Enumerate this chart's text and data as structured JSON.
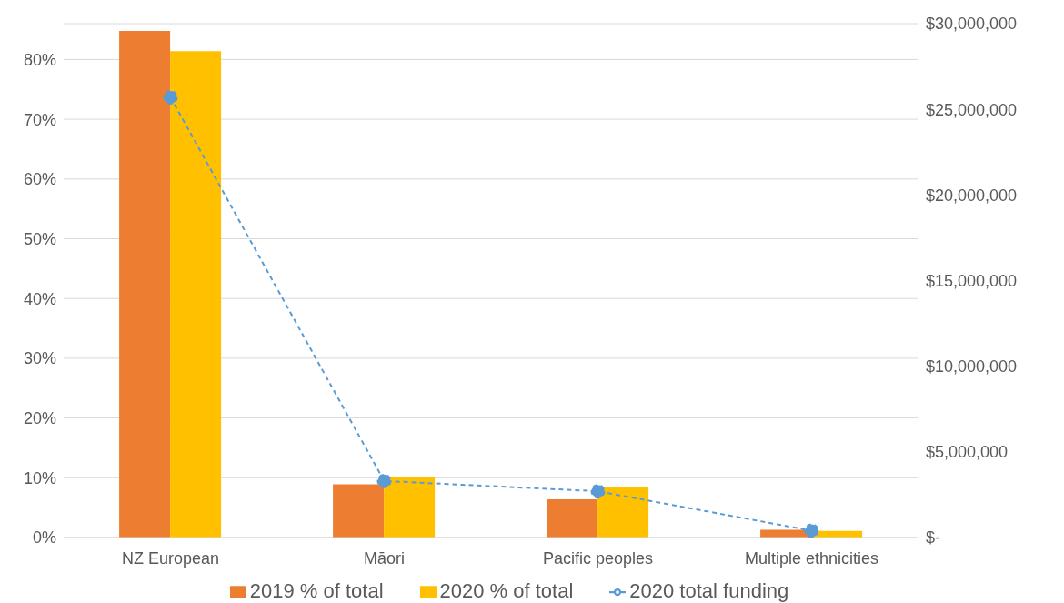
{
  "chart_data": {
    "type": "bar",
    "categories": [
      "NZ European",
      "Māori",
      "Pacific peoples",
      "Multiple ethnicities"
    ],
    "series": [
      {
        "name": "2019 % of total",
        "color": "#ed7d31",
        "values": [
          84.8,
          8.9,
          6.4,
          1.3
        ]
      },
      {
        "name": "2020 % of total",
        "color": "#ffc000",
        "values": [
          81.4,
          10.2,
          8.4,
          1.1
        ]
      },
      {
        "name": "2020 total funding",
        "type": "line",
        "axis": "y2",
        "color": "#5b9bd5",
        "marker": "circle",
        "line_style": "dashed",
        "values": [
          25700000,
          3300000,
          2700000,
          400000
        ]
      }
    ],
    "ylim": [
      0,
      86
    ],
    "yticks": [
      {
        "value": 0,
        "label": "0%"
      },
      {
        "value": 10,
        "label": "10%"
      },
      {
        "value": 20,
        "label": "20%"
      },
      {
        "value": 30,
        "label": "30%"
      },
      {
        "value": 40,
        "label": "40%"
      },
      {
        "value": 50,
        "label": "50%"
      },
      {
        "value": 60,
        "label": "60%"
      },
      {
        "value": 70,
        "label": "70%"
      },
      {
        "value": 80,
        "label": "80%"
      }
    ],
    "y2lim": [
      0,
      30000000
    ],
    "y2ticks": [
      {
        "value": 0,
        "label": "$-"
      },
      {
        "value": 5000000,
        "label": "$5,000,000"
      },
      {
        "value": 10000000,
        "label": "$10,000,000"
      },
      {
        "value": 15000000,
        "label": "$15,000,000"
      },
      {
        "value": 20000000,
        "label": "$20,000,000"
      },
      {
        "value": 25000000,
        "label": "$25,000,000"
      },
      {
        "value": 30000000,
        "label": "$30,000,000"
      }
    ],
    "grid": "y",
    "legend": "bottom"
  }
}
